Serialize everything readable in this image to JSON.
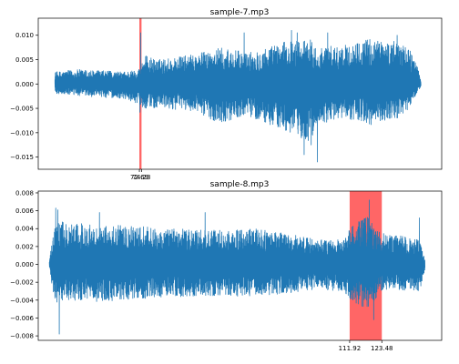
{
  "chart_data": [
    {
      "type": "line",
      "title": "sample-7.mp3",
      "xlabel": "",
      "ylabel": "",
      "ylim": [
        -0.0175,
        0.0135
      ],
      "yticks": [
        -0.015,
        -0.01,
        -0.005,
        0.0,
        0.005,
        0.01
      ],
      "ytick_labels": [
        "−0.015",
        "−0.010",
        "−0.005",
        "0.000",
        "0.005",
        "0.010"
      ],
      "xlim": [
        0,
        290
      ],
      "xticks": [
        72.69,
        74.23
      ],
      "xtick_labels": [
        "72.69",
        "74.23"
      ],
      "grid": false,
      "highlight": {
        "x_start": 72.69,
        "x_end": 74.23,
        "color": "#ff0000"
      },
      "series": [
        {
          "color": "#1f77b4",
          "envelope": {
            "x": [
              12,
              30,
              60,
              72,
              76,
              85,
              110,
              130,
              150,
              175,
              195,
              200,
              220,
              240,
              262,
              270,
              275
            ],
            "high": [
              0.0025,
              0.003,
              0.0025,
              0.003,
              0.006,
              0.005,
              0.006,
              0.0075,
              0.0065,
              0.0085,
              0.0095,
              0.0075,
              0.008,
              0.0095,
              0.0085,
              0.006,
              0.001
            ],
            "low": [
              -0.002,
              -0.0025,
              -0.003,
              -0.004,
              -0.005,
              -0.005,
              -0.0055,
              -0.008,
              -0.0065,
              -0.0095,
              -0.012,
              -0.0085,
              -0.007,
              -0.0085,
              -0.007,
              -0.003,
              -0.0005
            ]
          },
          "spikes": [
            {
              "x": 73.7,
              "y": 0.0105
            },
            {
              "x": 73.0,
              "y": -0.0058
            },
            {
              "x": 200.5,
              "y": -0.016
            },
            {
              "x": 191.0,
              "y": -0.0145
            },
            {
              "x": 196.0,
              "y": -0.0125
            },
            {
              "x": 148.0,
              "y": 0.0105
            },
            {
              "x": 186.0,
              "y": 0.0105
            },
            {
              "x": 182.0,
              "y": 0.011
            },
            {
              "x": 208.0,
              "y": 0.0105
            },
            {
              "x": 258.0,
              "y": 0.01
            }
          ]
        }
      ]
    },
    {
      "type": "line",
      "title": "sample-8.mp3",
      "xlabel": "",
      "ylabel": "",
      "ylim": [
        -0.0085,
        0.0082
      ],
      "yticks": [
        -0.008,
        -0.006,
        -0.004,
        -0.002,
        0.0,
        0.002,
        0.004,
        0.006,
        0.008
      ],
      "ytick_labels": [
        "−0.008",
        "−0.006",
        "−0.004",
        "−0.002",
        "0.000",
        "0.002",
        "0.004",
        "0.006",
        "0.008"
      ],
      "xlim": [
        0,
        145
      ],
      "xticks": [
        111.92,
        123.48
      ],
      "xtick_labels": [
        "111.92",
        "123.48"
      ],
      "grid": false,
      "highlight": {
        "x_start": 111.92,
        "x_end": 123.48,
        "color": "#ff0000"
      },
      "series": [
        {
          "color": "#1f77b4",
          "envelope": {
            "x": [
              4,
              6,
              8,
              20,
              40,
              60,
              80,
              100,
              110,
              112,
              118,
              123,
              130,
              137,
              139
            ],
            "high": [
              0.0005,
              0.0045,
              0.0048,
              0.0045,
              0.0042,
              0.0038,
              0.004,
              0.0028,
              0.0028,
              0.004,
              0.0055,
              0.0035,
              0.0032,
              0.0028,
              0.0005
            ],
            "low": [
              -0.0005,
              -0.0045,
              -0.004,
              -0.0042,
              -0.0038,
              -0.0035,
              -0.0036,
              -0.0028,
              -0.003,
              -0.004,
              -0.005,
              -0.0032,
              -0.003,
              -0.003,
              -0.0005
            ]
          },
          "spikes": [
            {
              "x": 6.3,
              "y": 0.0063
            },
            {
              "x": 7.0,
              "y": 0.0061
            },
            {
              "x": 7.5,
              "y": -0.0078
            },
            {
              "x": 119.0,
              "y": 0.0072
            },
            {
              "x": 120.5,
              "y": -0.0062
            },
            {
              "x": 60.0,
              "y": 0.0058
            },
            {
              "x": 22.0,
              "y": 0.0058
            },
            {
              "x": 137.0,
              "y": 0.0052
            }
          ]
        }
      ]
    }
  ]
}
